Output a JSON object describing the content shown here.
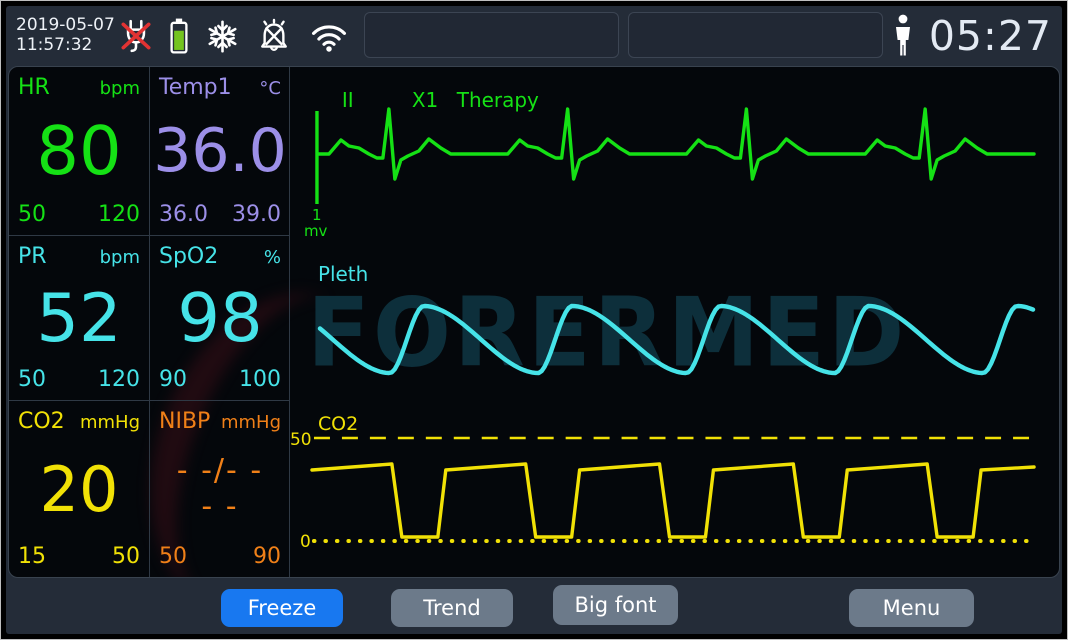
{
  "topbar": {
    "date": "2019-05-07",
    "time": "11:57:32",
    "status_icons": [
      "ac-power-disconnected",
      "battery",
      "freeze-snowflake",
      "alarm-off",
      "wifi"
    ],
    "alarm_message_1": "",
    "alarm_message_2": "",
    "patient_type": "adult",
    "timer": "05:27"
  },
  "colors": {
    "hr_green": "#15e115",
    "temp_purple": "#9c8fe8",
    "spo2_cyan": "#46e3e8",
    "co2_yellow": "#f1e106",
    "nibp_orange": "#f08018",
    "battery_green": "#74c41f",
    "alarm_red": "#e23333",
    "freeze_blue": "#1878f0",
    "button_gray": "#6c7a8a"
  },
  "vitals": [
    {
      "label": "HR",
      "unit": "bpm",
      "value": "80",
      "low": "50",
      "high": "120",
      "color": "#15e115"
    },
    {
      "label": "Temp1",
      "unit": "°C",
      "value": "36.0",
      "low": "36.0",
      "high": "39.0",
      "color": "#9c8fe8"
    },
    {
      "label": "PR",
      "unit": "bpm",
      "value": "52",
      "low": "50",
      "high": "120",
      "color": "#46e3e8"
    },
    {
      "label": "SpO2",
      "unit": "%",
      "value": "98",
      "low": "90",
      "high": "100",
      "color": "#46e3e8"
    },
    {
      "label": "CO2",
      "unit": "mmHg",
      "value": "20",
      "low": "15",
      "high": "50",
      "color": "#f1e106"
    },
    {
      "label": "NIBP",
      "unit": "mmHg",
      "value": "- -/- -",
      "value2": "- -",
      "low": "50",
      "high": "90",
      "color": "#f08018"
    }
  ],
  "waveforms": {
    "ecg": {
      "lead": "II",
      "gain": "X1",
      "mode": "Therapy",
      "cal_value": "1",
      "cal_unit": "mv",
      "color": "#15e115",
      "beats": 4
    },
    "pleth": {
      "label": "Pleth",
      "color": "#46e3e8",
      "cycles": 5
    },
    "co2": {
      "label": "CO2",
      "scale_max": "50",
      "scale_min": "0",
      "color": "#f1e106",
      "cycles": 6
    }
  },
  "watermark": "FORERMED",
  "footer": {
    "buttons": [
      {
        "label": "Freeze"
      },
      {
        "label": "Trend"
      },
      {
        "label": "Big font"
      },
      {
        "label": "Menu"
      }
    ]
  }
}
